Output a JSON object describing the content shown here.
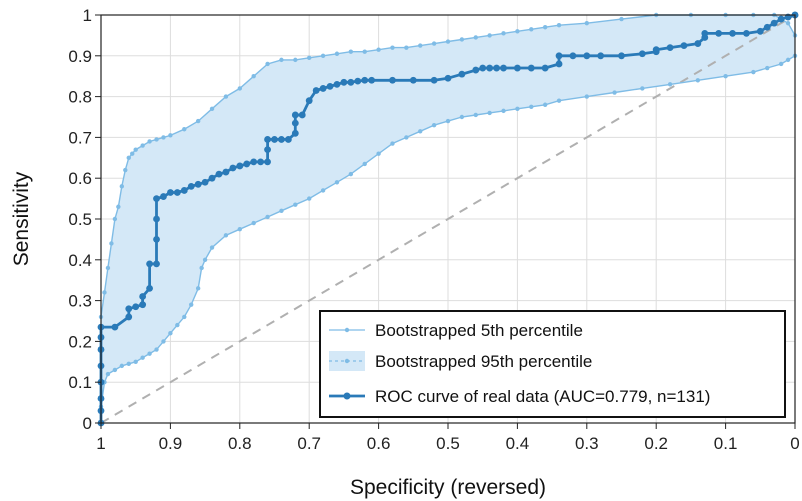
{
  "chart_data": {
    "type": "line",
    "title": "",
    "xlabel": "Specificity (reversed)",
    "ylabel": "Sensitivity",
    "x_reversed": true,
    "xlim": [
      1,
      0
    ],
    "ylim": [
      0,
      1
    ],
    "grid": true,
    "legend_position": "bottom-right",
    "x_tick_labels": [
      "1",
      "0.9",
      "0.8",
      "0.7",
      "0.6",
      "0.5",
      "0.4",
      "0.3",
      "0.2",
      "0.1",
      "0"
    ],
    "y_tick_labels": [
      "0",
      "0.1",
      "0.2",
      "0.3",
      "0.4",
      "0.5",
      "0.6",
      "0.7",
      "0.8",
      "0.9",
      "1"
    ],
    "x_ticks": [
      1,
      0.9,
      0.8,
      0.7,
      0.6,
      0.5,
      0.4,
      0.3,
      0.2,
      0.1,
      0
    ],
    "y_ticks": [
      0,
      0.1,
      0.2,
      0.3,
      0.4,
      0.5,
      0.6,
      0.7,
      0.8,
      0.9,
      1
    ],
    "reference_line": [
      [
        1,
        0
      ],
      [
        0,
        1
      ]
    ],
    "colors": {
      "roc": "#2a7ab8",
      "band_line": "#7fbce6",
      "band_fill": "#d4e8f7",
      "reference": "#b0b0b0",
      "grid": "#dddddd"
    },
    "series": [
      {
        "name": "Bootstrapped 5th percentile",
        "x": [
          1,
          0.995,
          0.99,
          0.98,
          0.97,
          0.96,
          0.95,
          0.94,
          0.93,
          0.92,
          0.91,
          0.9,
          0.89,
          0.88,
          0.87,
          0.86,
          0.855,
          0.85,
          0.84,
          0.82,
          0.8,
          0.78,
          0.76,
          0.74,
          0.72,
          0.7,
          0.68,
          0.66,
          0.64,
          0.62,
          0.6,
          0.58,
          0.56,
          0.54,
          0.52,
          0.5,
          0.48,
          0.46,
          0.44,
          0.42,
          0.4,
          0.38,
          0.36,
          0.34,
          0.3,
          0.26,
          0.22,
          0.18,
          0.14,
          0.1,
          0.06,
          0.04,
          0.02,
          0.01,
          0
        ],
        "y": [
          0.04,
          0.1,
          0.12,
          0.13,
          0.14,
          0.145,
          0.15,
          0.16,
          0.17,
          0.18,
          0.2,
          0.22,
          0.24,
          0.26,
          0.29,
          0.33,
          0.38,
          0.4,
          0.43,
          0.46,
          0.475,
          0.49,
          0.505,
          0.52,
          0.535,
          0.55,
          0.57,
          0.59,
          0.61,
          0.635,
          0.66,
          0.685,
          0.7,
          0.715,
          0.73,
          0.74,
          0.75,
          0.755,
          0.76,
          0.765,
          0.77,
          0.775,
          0.78,
          0.79,
          0.8,
          0.81,
          0.82,
          0.83,
          0.84,
          0.85,
          0.86,
          0.87,
          0.88,
          0.89,
          0.9
        ]
      },
      {
        "name": "Bootstrapped 95th percentile",
        "x": [
          1,
          0.995,
          0.99,
          0.985,
          0.98,
          0.975,
          0.97,
          0.965,
          0.96,
          0.955,
          0.95,
          0.94,
          0.93,
          0.92,
          0.91,
          0.9,
          0.88,
          0.86,
          0.84,
          0.82,
          0.8,
          0.78,
          0.76,
          0.74,
          0.72,
          0.7,
          0.68,
          0.66,
          0.64,
          0.62,
          0.6,
          0.58,
          0.56,
          0.54,
          0.52,
          0.5,
          0.48,
          0.46,
          0.44,
          0.42,
          0.4,
          0.38,
          0.36,
          0.34,
          0.3,
          0.25,
          0.2,
          0.15,
          0.1,
          0.06,
          0.03,
          0.01,
          0
        ],
        "y": [
          0.26,
          0.32,
          0.38,
          0.44,
          0.5,
          0.53,
          0.58,
          0.62,
          0.65,
          0.66,
          0.67,
          0.68,
          0.69,
          0.695,
          0.7,
          0.705,
          0.72,
          0.74,
          0.77,
          0.8,
          0.82,
          0.85,
          0.88,
          0.89,
          0.89,
          0.895,
          0.9,
          0.905,
          0.91,
          0.91,
          0.915,
          0.92,
          0.92,
          0.925,
          0.93,
          0.935,
          0.94,
          0.945,
          0.95,
          0.955,
          0.96,
          0.965,
          0.97,
          0.975,
          0.98,
          0.99,
          1,
          1,
          1,
          1,
          1,
          0.98,
          0.95
        ]
      },
      {
        "name": "ROC curve of real data (AUC=0.779, n=131)",
        "x": [
          1,
          1,
          1,
          1,
          1,
          1,
          1,
          1,
          0.98,
          0.96,
          0.96,
          0.95,
          0.94,
          0.94,
          0.93,
          0.93,
          0.92,
          0.92,
          0.92,
          0.92,
          0.91,
          0.9,
          0.89,
          0.88,
          0.87,
          0.86,
          0.85,
          0.84,
          0.83,
          0.82,
          0.81,
          0.8,
          0.79,
          0.78,
          0.77,
          0.76,
          0.76,
          0.76,
          0.75,
          0.74,
          0.73,
          0.72,
          0.72,
          0.72,
          0.71,
          0.7,
          0.69,
          0.68,
          0.67,
          0.66,
          0.65,
          0.64,
          0.63,
          0.62,
          0.61,
          0.58,
          0.55,
          0.52,
          0.5,
          0.48,
          0.46,
          0.45,
          0.44,
          0.43,
          0.42,
          0.4,
          0.38,
          0.36,
          0.34,
          0.34,
          0.32,
          0.3,
          0.28,
          0.25,
          0.22,
          0.2,
          0.2,
          0.18,
          0.16,
          0.14,
          0.13,
          0.13,
          0.11,
          0.09,
          0.07,
          0.05,
          0.04,
          0.03,
          0.02,
          0.01,
          0,
          0
        ],
        "y": [
          0,
          0.03,
          0.06,
          0.1,
          0.14,
          0.18,
          0.21,
          0.235,
          0.235,
          0.26,
          0.28,
          0.285,
          0.29,
          0.31,
          0.33,
          0.39,
          0.39,
          0.45,
          0.5,
          0.55,
          0.555,
          0.565,
          0.565,
          0.57,
          0.58,
          0.585,
          0.59,
          0.6,
          0.61,
          0.615,
          0.625,
          0.63,
          0.635,
          0.64,
          0.64,
          0.64,
          0.67,
          0.695,
          0.695,
          0.695,
          0.695,
          0.71,
          0.735,
          0.755,
          0.755,
          0.79,
          0.815,
          0.82,
          0.825,
          0.83,
          0.835,
          0.835,
          0.838,
          0.84,
          0.84,
          0.84,
          0.84,
          0.84,
          0.845,
          0.855,
          0.865,
          0.87,
          0.87,
          0.87,
          0.87,
          0.87,
          0.87,
          0.87,
          0.88,
          0.9,
          0.9,
          0.9,
          0.9,
          0.9,
          0.905,
          0.91,
          0.915,
          0.92,
          0.925,
          0.93,
          0.945,
          0.955,
          0.955,
          0.955,
          0.955,
          0.96,
          0.97,
          0.98,
          0.99,
          0.995,
          1,
          1
        ]
      }
    ]
  }
}
